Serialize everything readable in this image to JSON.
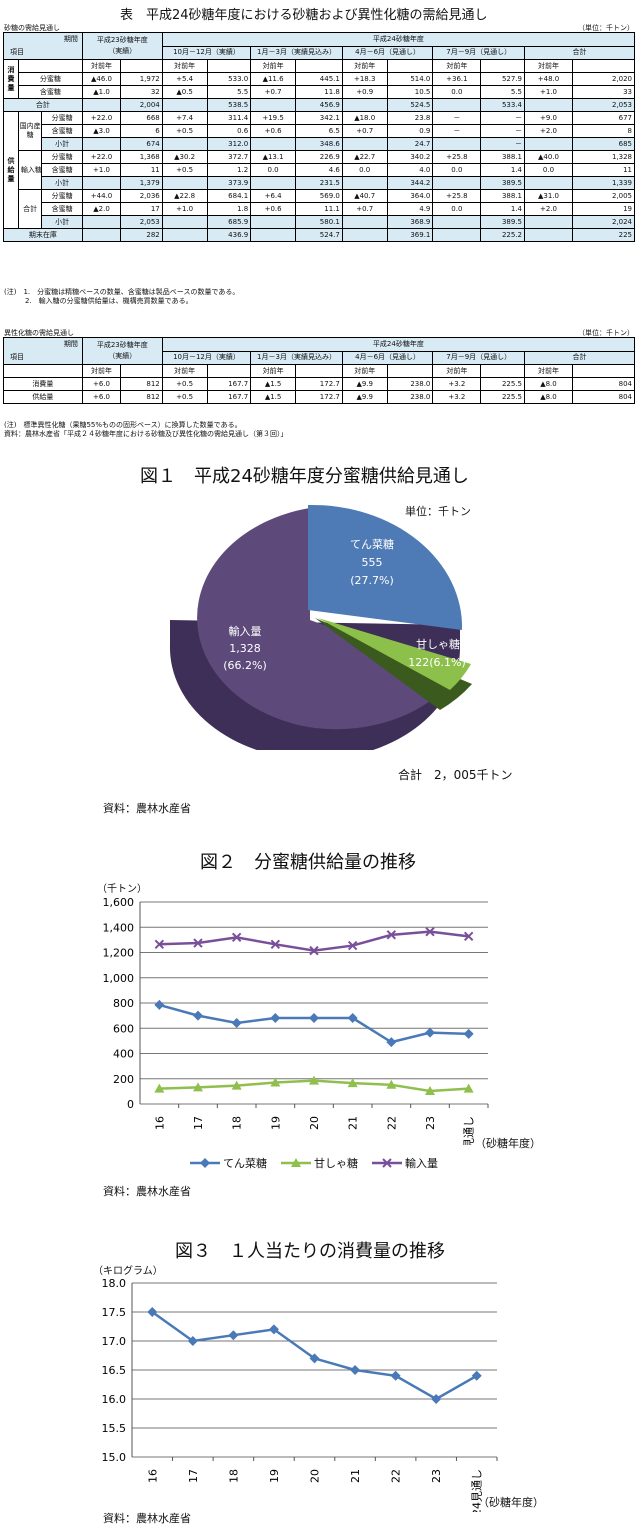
{
  "title": "表　平成24砂糖年度における砂糖および異性化糖の需給見通し",
  "unit": "（単位：千トン）",
  "t1": {
    "caption": "砂糖の需給見通し",
    "h": {
      "period": "期間",
      "item": "項目",
      "prev": "平成23砂糖年度",
      "prev2": "（実績）",
      "cur": "平成24砂糖年度",
      "q": [
        "10月－12月（実績）",
        "1月－3月（実績見込み）",
        "4月－6月（見通し）",
        "7月－9月（見通し）",
        "合計"
      ],
      "yoy": "対前年"
    },
    "g": {
      "cons": "消費量",
      "supply": "供給量",
      "dom": "国内産糖",
      "imp": "輸入糖",
      "total": "合計",
      "bunmitsu": "分蜜糖",
      "ganmitsu": "含蜜糖",
      "sub": "小計",
      "stock": "期末在庫"
    },
    "rows": [
      [
        "▲46.0",
        "1,972",
        "+5.4",
        "533.0",
        "▲11.6",
        "445.1",
        "+18.3",
        "514.0",
        "+36.1",
        "527.9",
        "+48.0",
        "2,020"
      ],
      [
        "▲1.0",
        "32",
        "▲0.5",
        "5.5",
        "+0.7",
        "11.8",
        "+0.9",
        "10.5",
        "0.0",
        "5.5",
        "+1.0",
        "33"
      ],
      [
        "",
        "2,004",
        "",
        "538.5",
        "",
        "456.9",
        "",
        "524.5",
        "",
        "533.4",
        "",
        "2,053"
      ],
      [
        "+22.0",
        "668",
        "+7.4",
        "311.4",
        "+19.5",
        "342.1",
        "▲18.0",
        "23.8",
        "－",
        "－",
        "+9.0",
        "677"
      ],
      [
        "▲3.0",
        "6",
        "+0.5",
        "0.6",
        "+0.6",
        "6.5",
        "+0.7",
        "0.9",
        "－",
        "－",
        "+2.0",
        "8"
      ],
      [
        "",
        "674",
        "",
        "312.0",
        "",
        "348.6",
        "",
        "24.7",
        "",
        "－",
        "",
        "685"
      ],
      [
        "+22.0",
        "1,368",
        "▲30.2",
        "372.7",
        "▲13.1",
        "226.9",
        "▲22.7",
        "340.2",
        "+25.8",
        "388.1",
        "▲40.0",
        "1,328"
      ],
      [
        "+1.0",
        "11",
        "+0.5",
        "1.2",
        "0.0",
        "4.6",
        "0.0",
        "4.0",
        "0.0",
        "1.4",
        "0.0",
        "11"
      ],
      [
        "",
        "1,379",
        "",
        "373.9",
        "",
        "231.5",
        "",
        "344.2",
        "",
        "389.5",
        "",
        "1,339"
      ],
      [
        "+44.0",
        "2,036",
        "▲22.8",
        "684.1",
        "+6.4",
        "569.0",
        "▲40.7",
        "364.0",
        "+25.8",
        "388.1",
        "▲31.0",
        "2,005"
      ],
      [
        "▲2.0",
        "17",
        "+1.0",
        "1.8",
        "+0.6",
        "11.1",
        "+0.7",
        "4.9",
        "0.0",
        "1.4",
        "+2.0",
        "19"
      ],
      [
        "",
        "2,053",
        "",
        "685.9",
        "",
        "580.1",
        "",
        "368.9",
        "",
        "389.5",
        "",
        "2,024"
      ],
      [
        "",
        "282",
        "",
        "436.9",
        "",
        "524.7",
        "",
        "369.1",
        "",
        "225.2",
        "",
        "225"
      ]
    ],
    "notes": [
      "(注)　1.　分蜜糖は精糖ベースの数量、含蜜糖は製品ベースの数量である。",
      "　　　2.　輸入糖の分蜜糖供給量は、機構売買数量である。"
    ]
  },
  "t2": {
    "caption": "異性化糖の需給見通し",
    "unit": "（単位：千トン）",
    "labels": [
      "消費量",
      "供給量"
    ],
    "rows": [
      [
        "+6.0",
        "812",
        "+0.5",
        "167.7",
        "▲1.5",
        "172.7",
        "▲9.9",
        "238.0",
        "+3.2",
        "225.5",
        "▲8.0",
        "804"
      ],
      [
        "+6.0",
        "812",
        "+0.5",
        "167.7",
        "▲1.5",
        "172.7",
        "▲9.9",
        "238.0",
        "+3.2",
        "225.5",
        "▲8.0",
        "804"
      ]
    ],
    "notes": [
      "(注)　標準異性化糖（果糖55%ものの固形ベース）に換算した数量である。",
      "資料：農林水産省「平成２４砂糖年度における砂糖及び異性化糖の需給見通し（第３回）」"
    ]
  },
  "fig1": {
    "title": "図１　平成24砂糖年度分蜜糖供給見通し",
    "unit": "単位：千トン",
    "total": "合計　2，005千トン",
    "source": "資料：農林水産省",
    "slices": [
      {
        "name": "てん菜糖",
        "value": "555",
        "pct": "(27.7%)",
        "color": "#4e7ab5"
      },
      {
        "name": "甘しゃ糖",
        "value": "122(6.1%)",
        "pct": "",
        "color": "#8dc04a"
      },
      {
        "name": "輸入量",
        "value": "1,328",
        "pct": "(66.2%)",
        "color": "#5d4a7a"
      }
    ]
  },
  "fig2": {
    "title": "図２　分蜜糖供給量の推移",
    "yunit": "（千トン）",
    "xunit": "（砂糖年度）",
    "source": "資料：農林水産省",
    "chart_data": {
      "type": "line",
      "categories": [
        "16",
        "17",
        "18",
        "19",
        "20",
        "21",
        "22",
        "23",
        "24見通し"
      ],
      "ylim": [
        0,
        1600
      ],
      "yticks": [
        "0",
        "200",
        "400",
        "600",
        "800",
        "1,000",
        "1,200",
        "1,400",
        "1,600"
      ],
      "series": [
        {
          "name": "てん菜糖",
          "values": [
            785,
            700,
            642,
            681,
            681,
            681,
            490,
            565,
            555
          ],
          "color": "#4a79b7"
        },
        {
          "name": "甘しゃ糖",
          "values": [
            122,
            132,
            146,
            170,
            185,
            165,
            152,
            103,
            122
          ],
          "color": "#8fbf4c"
        },
        {
          "name": "輸入量",
          "values": [
            1265,
            1275,
            1320,
            1265,
            1215,
            1255,
            1340,
            1365,
            1328
          ],
          "color": "#7a4f9a"
        }
      ]
    }
  },
  "fig3": {
    "title": "図３　１人当たりの消費量の推移",
    "yunit": "（キログラム）",
    "xunit": "（砂糖年度）",
    "source": "資料：農林水産省",
    "chart_data": {
      "type": "line",
      "categories": [
        "16",
        "17",
        "18",
        "19",
        "20",
        "21",
        "22",
        "23",
        "24見通し"
      ],
      "ylim": [
        15,
        18
      ],
      "yticks": [
        "15.0",
        "15.5",
        "16.0",
        "16.5",
        "17.0",
        "17.5",
        "18.0"
      ],
      "series": [
        {
          "values": [
            17.5,
            17.0,
            17.1,
            17.2,
            16.7,
            16.5,
            16.4,
            16.0,
            16.4
          ],
          "color": "#4a79b7"
        }
      ]
    }
  }
}
